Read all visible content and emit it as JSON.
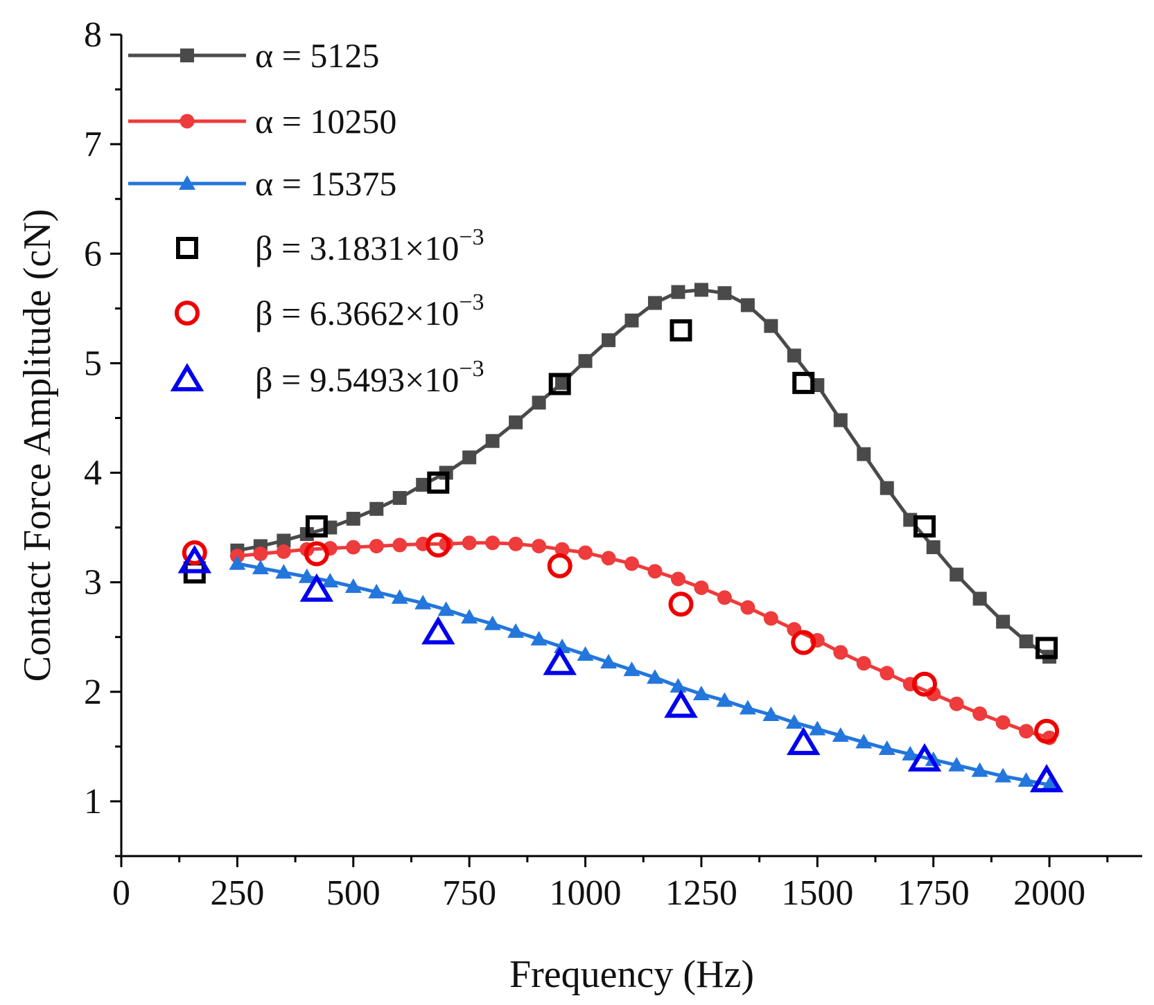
{
  "chart_data": {
    "type": "line",
    "xlabel": "Frequency (Hz)",
    "ylabel": "Contact Force Amplitude (cN)",
    "xlim": [
      0,
      2200
    ],
    "ylim": [
      0.5,
      8
    ],
    "xticks": [
      0,
      250,
      500,
      750,
      1000,
      1250,
      1500,
      1750,
      2000
    ],
    "yticks": [
      1,
      2,
      3,
      4,
      5,
      6,
      7,
      8
    ],
    "legend": {
      "placement": "top-left"
    },
    "series": [
      {
        "name": "α = 5125",
        "kind": "line-marker",
        "marker": "filled-square",
        "color": "#4a4a4a",
        "x": [
          250,
          300,
          350,
          400,
          450,
          500,
          550,
          600,
          650,
          700,
          750,
          800,
          850,
          900,
          950,
          1000,
          1050,
          1100,
          1150,
          1200,
          1250,
          1300,
          1350,
          1400,
          1450,
          1500,
          1550,
          1600,
          1650,
          1700,
          1750,
          1800,
          1850,
          1900,
          1950,
          2000
        ],
        "y": [
          3.29,
          3.33,
          3.38,
          3.44,
          3.5,
          3.58,
          3.67,
          3.77,
          3.89,
          4.0,
          4.14,
          4.29,
          4.46,
          4.64,
          4.82,
          5.02,
          5.21,
          5.39,
          5.55,
          5.65,
          5.67,
          5.64,
          5.53,
          5.34,
          5.07,
          4.8,
          4.48,
          4.17,
          3.86,
          3.57,
          3.32,
          3.07,
          2.85,
          2.64,
          2.46,
          2.32
        ]
      },
      {
        "name": "α = 10250",
        "kind": "line-marker",
        "marker": "filled-circle",
        "color": "#ee3b3b",
        "x": [
          250,
          300,
          350,
          400,
          450,
          500,
          550,
          600,
          650,
          700,
          750,
          800,
          850,
          900,
          950,
          1000,
          1050,
          1100,
          1150,
          1200,
          1250,
          1300,
          1350,
          1400,
          1450,
          1500,
          1550,
          1600,
          1650,
          1700,
          1750,
          1800,
          1850,
          1900,
          1950,
          2000
        ],
        "y": [
          3.24,
          3.26,
          3.28,
          3.3,
          3.31,
          3.32,
          3.33,
          3.34,
          3.35,
          3.35,
          3.36,
          3.36,
          3.35,
          3.33,
          3.3,
          3.27,
          3.22,
          3.17,
          3.1,
          3.03,
          2.95,
          2.86,
          2.77,
          2.67,
          2.57,
          2.47,
          2.36,
          2.26,
          2.17,
          2.07,
          1.98,
          1.89,
          1.8,
          1.72,
          1.64,
          1.58
        ]
      },
      {
        "name": "α = 15375",
        "kind": "line-marker",
        "marker": "filled-triangle",
        "color": "#2376dc",
        "x": [
          250,
          300,
          350,
          400,
          450,
          500,
          550,
          600,
          650,
          700,
          750,
          800,
          850,
          900,
          950,
          1000,
          1050,
          1100,
          1150,
          1200,
          1250,
          1300,
          1350,
          1400,
          1450,
          1500,
          1550,
          1600,
          1650,
          1700,
          1750,
          1800,
          1850,
          1900,
          1950,
          2000
        ],
        "y": [
          3.17,
          3.13,
          3.09,
          3.05,
          3.01,
          2.96,
          2.91,
          2.86,
          2.81,
          2.75,
          2.68,
          2.62,
          2.55,
          2.48,
          2.41,
          2.34,
          2.27,
          2.2,
          2.13,
          2.05,
          1.98,
          1.92,
          1.85,
          1.79,
          1.72,
          1.66,
          1.6,
          1.54,
          1.48,
          1.43,
          1.38,
          1.33,
          1.28,
          1.23,
          1.19,
          1.15
        ]
      },
      {
        "name": "β = 3.1831×10",
        "exponent": "−3",
        "kind": "scatter",
        "marker": "open-square",
        "color": "#000000",
        "x": [
          158,
          421,
          683,
          945,
          1206,
          1470,
          1731,
          1994
        ],
        "y": [
          3.09,
          3.51,
          3.91,
          4.81,
          5.3,
          4.82,
          3.51,
          2.4
        ]
      },
      {
        "name": "β = 6.3662×10",
        "exponent": "−3",
        "kind": "scatter",
        "marker": "open-circle",
        "color": "#ee0000",
        "x": [
          158,
          421,
          683,
          945,
          1206,
          1470,
          1731,
          1994
        ],
        "y": [
          3.27,
          3.26,
          3.34,
          3.15,
          2.8,
          2.45,
          2.07,
          1.64
        ]
      },
      {
        "name": "β = 9.5493×10",
        "exponent": "−3",
        "kind": "scatter",
        "marker": "open-triangle",
        "color": "#0000ee",
        "x": [
          158,
          421,
          683,
          945,
          1206,
          1470,
          1731,
          1994
        ],
        "y": [
          3.19,
          2.93,
          2.54,
          2.26,
          1.87,
          1.53,
          1.38,
          1.19
        ]
      }
    ]
  }
}
